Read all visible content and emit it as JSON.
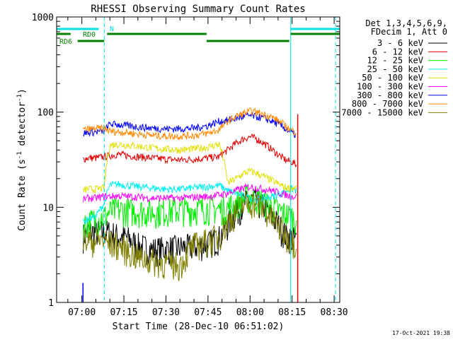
{
  "chart_data": {
    "type": "line",
    "title": "RHESSI Observing Summary Count Rates",
    "xlabel": "Start Time (28-Dec-10 06:51:02)",
    "ylabel_main": "Count Rate (s",
    "ylabel_sup1": "-1",
    "ylabel_mid": " detector",
    "ylabel_sup2": "-1",
    "ylabel_end": ")",
    "y_scale": "log",
    "ylim": [
      1,
      1000
    ],
    "xlim_minutes_since_0700": [
      -9,
      92
    ],
    "x_ticks": [
      {
        "t": 0,
        "label": "07:00"
      },
      {
        "t": 15,
        "label": "07:15"
      },
      {
        "t": 30,
        "label": "07:30"
      },
      {
        "t": 45,
        "label": "07:45"
      },
      {
        "t": 60,
        "label": "08:00"
      },
      {
        "t": 75,
        "label": "08:15"
      },
      {
        "t": 90,
        "label": "08:30"
      }
    ],
    "y_ticks": [
      {
        "v": 1,
        "label": "1"
      },
      {
        "v": 10,
        "label": "10"
      },
      {
        "v": 100,
        "label": "100"
      },
      {
        "v": 1000,
        "label": "1000"
      }
    ],
    "grid": false,
    "legend_position": "right",
    "legend_header": [
      "Det 1,3,4,5,6,9,",
      "FDecim 1, Att 0"
    ],
    "series": [
      {
        "name": "3 - 6 keV",
        "color": "#000000",
        "x": [
          0.5,
          2,
          5,
          8,
          10,
          13,
          16,
          20,
          25,
          30,
          35,
          40,
          45,
          49,
          52,
          55,
          58,
          60,
          62,
          65,
          68,
          71,
          73,
          75,
          76.5
        ],
        "y": [
          5,
          5.5,
          5.5,
          5.5,
          5.5,
          5,
          4.8,
          4,
          3.6,
          3.7,
          3.8,
          3.9,
          4.2,
          4.8,
          6.5,
          9,
          11,
          12,
          11.5,
          10,
          8,
          6,
          5,
          4.8,
          4.5
        ]
      },
      {
        "name": "6 - 12 keV",
        "color": "#e00000",
        "x": [
          0.5,
          2,
          5,
          8,
          10,
          13,
          16,
          20,
          25,
          30,
          35,
          40,
          45,
          49,
          52,
          55,
          58,
          60,
          62,
          65,
          68,
          71,
          73,
          75,
          76.5
        ],
        "y": [
          32,
          33,
          33,
          34,
          35,
          36,
          35,
          34,
          33,
          32,
          31.5,
          32,
          33,
          34,
          40,
          47,
          53,
          55,
          53,
          47,
          40,
          34,
          31,
          30,
          28
        ]
      },
      {
        "name": "12 - 25 keV",
        "color": "#00ee00",
        "x": [
          0.5,
          2,
          5,
          8,
          10,
          13,
          16,
          20,
          25,
          30,
          35,
          40,
          45,
          49,
          52,
          55,
          58,
          60,
          62,
          65,
          68,
          71,
          73,
          75,
          76.5
        ],
        "y": [
          6.5,
          7,
          7.5,
          8,
          9,
          9.5,
          9.3,
          9.2,
          9.0,
          9.2,
          9.4,
          9.6,
          9.8,
          9.6,
          10,
          11,
          12.5,
          13,
          12.5,
          11.5,
          10,
          9,
          8.5,
          8,
          7.5
        ]
      },
      {
        "name": "25 - 50 keV",
        "color": "#00f0f0",
        "x": [
          0.5,
          2,
          5,
          8,
          10,
          13,
          16,
          20,
          25,
          30,
          35,
          40,
          45,
          49,
          52,
          55,
          58,
          60,
          62,
          65,
          68,
          71,
          73,
          75,
          76.5
        ],
        "y": [
          7,
          7.5,
          8,
          11,
          17,
          17.5,
          17,
          16.5,
          16,
          15.5,
          15.5,
          16,
          16.5,
          17,
          15,
          14,
          13,
          12.5,
          12,
          12.5,
          13,
          14,
          15,
          15.5,
          15
        ]
      },
      {
        "name": "50 - 100 keV",
        "color": "#e0e000",
        "x": [
          0.5,
          2,
          5,
          8,
          10,
          13,
          16,
          20,
          25,
          30,
          35,
          40,
          45,
          49,
          52,
          55,
          58,
          60,
          62,
          65,
          68,
          71,
          73,
          75,
          76.5
        ],
        "y": [
          15,
          15.5,
          15.5,
          16,
          45,
          46,
          45,
          44,
          42,
          41,
          40,
          41,
          43,
          46,
          18,
          20,
          23,
          24,
          23,
          21,
          19,
          17,
          16,
          16,
          16
        ]
      },
      {
        "name": "100 - 300 keV",
        "color": "#ff00ff",
        "x": [
          0.5,
          2,
          5,
          8,
          10,
          13,
          16,
          20,
          25,
          30,
          35,
          40,
          45,
          49,
          52,
          55,
          58,
          60,
          62,
          65,
          68,
          71,
          73,
          75,
          76.5
        ],
        "y": [
          12,
          12.5,
          12.5,
          13,
          13,
          13.2,
          13,
          12.8,
          12.5,
          12.5,
          12.5,
          12.8,
          13,
          13.5,
          14,
          15,
          16,
          16.5,
          16,
          15.5,
          15,
          14,
          13.5,
          13,
          13
        ]
      },
      {
        "name": "300 - 800 keV",
        "color": "#0000ff",
        "x": [
          0.5,
          2,
          5,
          8,
          10,
          13,
          16,
          20,
          25,
          30,
          35,
          40,
          45,
          49,
          52,
          55,
          58,
          60,
          62,
          65,
          68,
          71,
          73,
          75,
          76.5
        ],
        "y": [
          60,
          61,
          62,
          63,
          75,
          74,
          72,
          70,
          68,
          67,
          67,
          68,
          72,
          80,
          82,
          86,
          90,
          92,
          90,
          86,
          80,
          72,
          66,
          60,
          57
        ]
      },
      {
        "name": "800 - 7000 keV",
        "color": "#ff8800",
        "x": [
          0.5,
          2,
          5,
          8,
          10,
          13,
          16,
          20,
          25,
          30,
          35,
          40,
          45,
          49,
          52,
          55,
          58,
          60,
          62,
          65,
          68,
          71,
          73,
          75,
          76.5
        ],
        "y": [
          65,
          66,
          67,
          68,
          63,
          62,
          61,
          59,
          57,
          56,
          56,
          57,
          60,
          65,
          80,
          90,
          98,
          102,
          100,
          95,
          88,
          78,
          70,
          64,
          62
        ]
      },
      {
        "name": "7000 - 15000 keV",
        "color": "#808000",
        "x": [
          0.5,
          2,
          5,
          8,
          10,
          13,
          16,
          20,
          25,
          30,
          35,
          40,
          45,
          49,
          52,
          55,
          58,
          60,
          62,
          65,
          68,
          71,
          73,
          75,
          76.5
        ],
        "y": [
          4.5,
          4.5,
          4.5,
          4.5,
          4.2,
          4,
          3.6,
          3,
          2.8,
          2.6,
          2.5,
          4,
          4.5,
          5,
          7,
          9,
          11,
          11.5,
          11,
          9.5,
          7.5,
          6,
          5,
          4.5,
          4.2
        ]
      }
    ],
    "spike_x": 0.4,
    "annotations": {
      "n_label": "N",
      "rd0_label": "RD0",
      "rd6_label": "RD6"
    },
    "top_bars": {
      "cyan": [
        [
          -9,
          6
        ],
        [
          74.5,
          92
        ]
      ],
      "green_rd0": [
        [
          -9,
          -4
        ],
        [
          9,
          44.5
        ],
        [
          74.5,
          92
        ]
      ],
      "green_rd6": [
        [
          -1.5,
          8
        ],
        [
          44.5,
          74
        ]
      ]
    },
    "vertical_lines": {
      "solid_cyan": [
        -9,
        74.5
      ],
      "dashed_cyan": [
        8,
        90.5
      ],
      "red": [
        77
      ]
    },
    "timestamp": "17-Oct-2021 19:38"
  }
}
